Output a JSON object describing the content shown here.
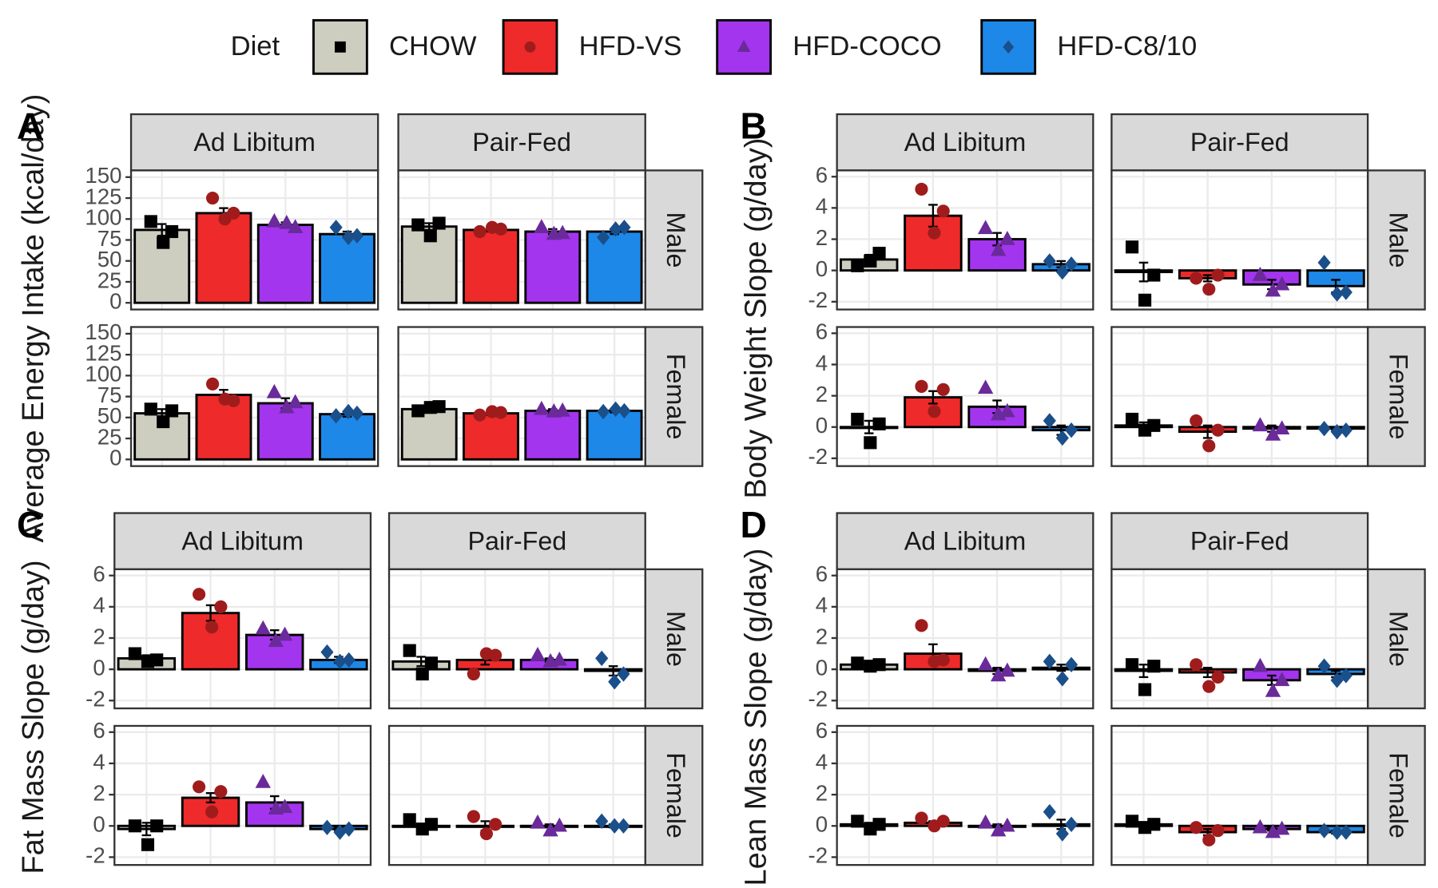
{
  "legend": {
    "title": "Diet",
    "items": [
      {
        "name": "CHOW",
        "color": "#cdcdc0",
        "point_color": "#000000",
        "shape": "square"
      },
      {
        "name": "HFD-VS",
        "color": "#ee2a2a",
        "point_color": "#a01c1c",
        "shape": "circle"
      },
      {
        "name": "HFD-COCO",
        "color": "#a335ee",
        "point_color": "#6a2a9a",
        "shape": "triangle"
      },
      {
        "name": "HFD-C8/10",
        "color": "#1e88e8",
        "point_color": "#1a4f8a",
        "shape": "diamond"
      }
    ]
  },
  "chart_data": [
    {
      "type": "bar",
      "panel_label": "A",
      "ylabel": "Average Energy Intake (kcal/day)",
      "ylim": [
        -8,
        158
      ],
      "yticks": [
        0,
        25,
        50,
        75,
        100,
        125,
        150
      ],
      "grid": true,
      "facet_cols": [
        "Ad Libitum",
        "Pair-Fed"
      ],
      "facet_rows": [
        "Male",
        "Female"
      ],
      "facets": [
        [
          {
            "values": [
              87,
              107,
              93,
              82
            ],
            "errors": [
              7,
              6,
              3,
              3
            ],
            "points": [
              [
                97,
                72,
                85
              ],
              [
                125,
                100,
                107
              ],
              [
                97,
                95,
                90
              ],
              [
                90,
                78,
                80
              ]
            ]
          },
          {
            "values": [
              91,
              87,
              85,
              85
            ],
            "errors": [
              4,
              2,
              3,
              3
            ],
            "points": [
              [
                93,
                80,
                95
              ],
              [
                85,
                90,
                88
              ],
              [
                90,
                82,
                83
              ],
              [
                78,
                88,
                90
              ]
            ]
          }
        ],
        [
          {
            "values": [
              55,
              77,
              67,
              54
            ],
            "errors": [
              5,
              6,
              6,
              3
            ],
            "points": [
              [
                60,
                45,
                58
              ],
              [
                90,
                72,
                70
              ],
              [
                80,
                62,
                68
              ],
              [
                52,
                57,
                55
              ]
            ]
          },
          {
            "values": [
              60,
              55,
              58,
              58
            ],
            "errors": [
              3,
              2,
              2,
              2
            ],
            "points": [
              [
                58,
                62,
                63
              ],
              [
                53,
                57,
                56
              ],
              [
                60,
                57,
                58
              ],
              [
                57,
                60,
                58
              ]
            ]
          }
        ]
      ]
    },
    {
      "type": "bar",
      "panel_label": "B",
      "ylabel": "Body Weight Slope (g/day)",
      "ylim": [
        -2.5,
        6.4
      ],
      "yticks": [
        -2,
        0,
        2,
        4,
        6
      ],
      "grid": true,
      "facet_cols": [
        "Ad Libitum",
        "Pair-Fed"
      ],
      "facet_rows": [
        "Male",
        "Female"
      ],
      "facets": [
        [
          {
            "values": [
              0.7,
              3.5,
              2.0,
              0.4
            ],
            "errors": [
              0.3,
              0.7,
              0.4,
              0.2
            ],
            "points": [
              [
                0.3,
                0.6,
                1.1
              ],
              [
                5.2,
                2.4,
                3.8
              ],
              [
                2.7,
                1.3,
                2.0
              ],
              [
                0.6,
                -0.1,
                0.4
              ]
            ]
          },
          {
            "values": [
              -0.1,
              -0.5,
              -0.9,
              -1.0
            ],
            "errors": [
              0.6,
              0.2,
              0.3,
              0.4
            ],
            "points": [
              [
                1.5,
                -1.9,
                -0.3
              ],
              [
                -0.5,
                -1.2,
                -0.3
              ],
              [
                -0.3,
                -1.3,
                -0.9
              ],
              [
                0.5,
                -1.5,
                -1.4
              ]
            ]
          }
        ],
        [
          {
            "values": [
              0.0,
              1.9,
              1.3,
              -0.2
            ],
            "errors": [
              0.4,
              0.4,
              0.4,
              0.3
            ],
            "points": [
              [
                0.5,
                -1.0,
                0.2
              ],
              [
                2.6,
                1.0,
                2.4
              ],
              [
                2.5,
                0.8,
                1.0
              ],
              [
                0.4,
                -0.7,
                -0.2
              ]
            ]
          },
          {
            "values": [
              0.1,
              -0.3,
              -0.1,
              -0.1
            ],
            "errors": [
              0.2,
              0.4,
              0.2,
              0.1
            ],
            "points": [
              [
                0.5,
                -0.2,
                0.1
              ],
              [
                0.4,
                -1.2,
                -0.2
              ],
              [
                0.1,
                -0.5,
                -0.1
              ],
              [
                -0.1,
                -0.3,
                -0.2
              ]
            ]
          }
        ]
      ]
    },
    {
      "type": "bar",
      "panel_label": "C",
      "ylabel": "Fat Mass Slope (g/day)",
      "ylim": [
        -2.5,
        6.4
      ],
      "yticks": [
        -2,
        0,
        2,
        4,
        6
      ],
      "grid": true,
      "facet_cols": [
        "Ad Libitum",
        "Pair-Fed"
      ],
      "facet_rows": [
        "Male",
        "Female"
      ],
      "facets": [
        [
          {
            "values": [
              0.7,
              3.6,
              2.2,
              0.6
            ],
            "errors": [
              0.2,
              0.5,
              0.3,
              0.2
            ],
            "points": [
              [
                1.0,
                0.5,
                0.6
              ],
              [
                4.8,
                2.7,
                4.0
              ],
              [
                2.6,
                1.8,
                2.2
              ],
              [
                1.1,
                0.5,
                0.6
              ]
            ]
          },
          {
            "values": [
              0.5,
              0.6,
              0.6,
              -0.1
            ],
            "errors": [
              0.3,
              0.3,
              0.1,
              0.3
            ],
            "points": [
              [
                1.2,
                -0.3,
                0.4
              ],
              [
                -0.3,
                1.0,
                0.9
              ],
              [
                0.9,
                0.5,
                0.6
              ],
              [
                0.7,
                -0.8,
                -0.3
              ]
            ]
          }
        ],
        [
          {
            "values": [
              -0.2,
              1.8,
              1.5,
              -0.2
            ],
            "errors": [
              0.4,
              0.3,
              0.4,
              0.1
            ],
            "points": [
              [
                0.0,
                -1.2,
                0.0
              ],
              [
                2.5,
                0.9,
                2.2
              ],
              [
                2.8,
                1.1,
                1.2
              ],
              [
                -0.1,
                -0.4,
                -0.2
              ]
            ]
          },
          {
            "values": [
              0.0,
              0.0,
              0.0,
              0.0
            ],
            "errors": [
              0.1,
              0.3,
              0.1,
              0.1
            ],
            "points": [
              [
                0.4,
                -0.2,
                0.1
              ],
              [
                0.6,
                -0.5,
                0.1
              ],
              [
                0.2,
                -0.3,
                0.0
              ],
              [
                0.3,
                0.0,
                0.0
              ]
            ]
          }
        ]
      ]
    },
    {
      "type": "bar",
      "panel_label": "D",
      "ylabel": "Lean Mass Slope (g/day)",
      "ylim": [
        -2.5,
        6.4
      ],
      "yticks": [
        -2,
        0,
        2,
        4,
        6
      ],
      "grid": true,
      "facet_cols": [
        "Ad Libitum",
        "Pair-Fed"
      ],
      "facet_rows": [
        "Male",
        "Female"
      ],
      "facets": [
        [
          {
            "values": [
              0.3,
              1.0,
              -0.1,
              0.1
            ],
            "errors": [
              0.1,
              0.6,
              0.2,
              0.2
            ],
            "points": [
              [
                0.4,
                0.2,
                0.3
              ],
              [
                2.8,
                0.5,
                0.6
              ],
              [
                0.3,
                -0.4,
                -0.1
              ],
              [
                0.5,
                -0.6,
                0.3
              ]
            ]
          },
          {
            "values": [
              -0.1,
              -0.2,
              -0.7,
              -0.3
            ],
            "errors": [
              0.4,
              0.3,
              0.3,
              0.2
            ],
            "points": [
              [
                0.3,
                -1.3,
                0.2
              ],
              [
                0.3,
                -1.1,
                -0.5
              ],
              [
                0.2,
                -1.4,
                -0.7
              ],
              [
                0.2,
                -0.7,
                -0.4
              ]
            ]
          }
        ],
        [
          {
            "values": [
              0.1,
              0.2,
              0.0,
              0.1
            ],
            "errors": [
              0.1,
              0.1,
              0.1,
              0.3
            ],
            "points": [
              [
                0.3,
                -0.2,
                0.1
              ],
              [
                0.5,
                0.0,
                0.3
              ],
              [
                0.2,
                -0.3,
                0.0
              ],
              [
                0.9,
                -0.5,
                0.1
              ]
            ]
          },
          {
            "values": [
              0.1,
              -0.4,
              -0.2,
              -0.4
            ],
            "errors": [
              0.1,
              0.2,
              0.1,
              0.1
            ],
            "points": [
              [
                0.3,
                -0.1,
                0.1
              ],
              [
                -0.1,
                -0.9,
                -0.3
              ],
              [
                -0.1,
                -0.4,
                -0.2
              ],
              [
                -0.3,
                -0.4,
                -0.4
              ]
            ]
          }
        ]
      ]
    }
  ]
}
